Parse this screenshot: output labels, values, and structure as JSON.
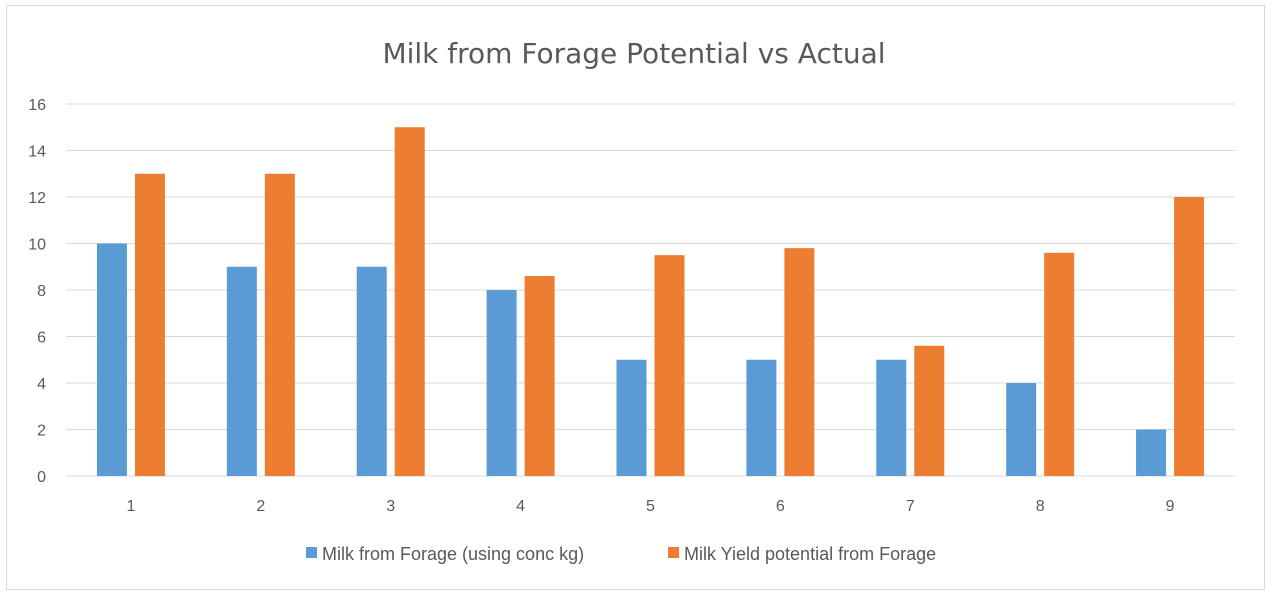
{
  "chart_data": {
    "type": "bar",
    "title": "Milk from Forage Potential vs Actual",
    "categories": [
      "1",
      "2",
      "3",
      "4",
      "5",
      "6",
      "7",
      "8",
      "9"
    ],
    "series": [
      {
        "name": "Milk from Forage (using conc kg)",
        "color": "#5b9bd5",
        "values": [
          10,
          9,
          9,
          8,
          5,
          5,
          5,
          4,
          2
        ]
      },
      {
        "name": "Milk Yield potential from Forage",
        "color": "#ed7d31",
        "values": [
          13,
          13,
          15,
          8.6,
          9.5,
          9.8,
          5.6,
          9.6,
          12
        ]
      }
    ],
    "ylim": [
      0,
      16
    ],
    "yticks": [
      "0",
      "2",
      "4",
      "6",
      "8",
      "10",
      "12",
      "14",
      "16"
    ],
    "grid": true,
    "legend_position": "bottom"
  }
}
